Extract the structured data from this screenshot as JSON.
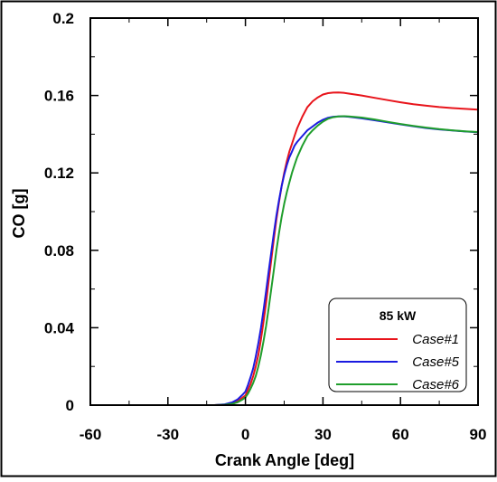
{
  "chart_data": {
    "type": "line",
    "title": "",
    "xlabel": "Crank Angle [deg]",
    "ylabel": "CO [g]",
    "xlim": [
      -60,
      90
    ],
    "ylim": [
      0,
      0.2
    ],
    "xticks": [
      -60,
      -30,
      0,
      30,
      60,
      90
    ],
    "xtick_labels": [
      "-60",
      "-30",
      "0",
      "30",
      "60",
      "90"
    ],
    "yticks": [
      0,
      0.04,
      0.08,
      0.12,
      0.16,
      0.2
    ],
    "ytick_labels": [
      "0",
      "0.04",
      "0.08",
      "0.12",
      "0.16",
      "0.2"
    ],
    "grid": false,
    "legend": {
      "title": "85 kW",
      "placement": "bottom-right"
    },
    "series": [
      {
        "name": "Case#1",
        "color": "#e8141b",
        "x": [
          -60,
          -20,
          -12,
          -8,
          -5,
          -3,
          -1,
          0,
          1,
          2,
          3,
          4,
          5,
          6,
          7,
          8,
          9,
          10,
          11,
          12,
          13,
          14,
          15,
          16,
          17,
          18,
          19,
          20,
          22,
          24,
          26,
          28,
          30,
          32,
          34,
          36,
          38,
          40,
          45,
          50,
          55,
          60,
          65,
          70,
          75,
          80,
          85,
          90
        ],
        "y": [
          0,
          0,
          0,
          0.0003,
          0.001,
          0.002,
          0.004,
          0.005,
          0.008,
          0.011,
          0.015,
          0.02,
          0.026,
          0.034,
          0.043,
          0.053,
          0.064,
          0.075,
          0.086,
          0.096,
          0.105,
          0.113,
          0.12,
          0.126,
          0.131,
          0.135,
          0.139,
          0.143,
          0.149,
          0.154,
          0.157,
          0.159,
          0.1605,
          0.1612,
          0.1615,
          0.1616,
          0.1614,
          0.161,
          0.16,
          0.1588,
          0.1576,
          0.1565,
          0.1555,
          0.1547,
          0.154,
          0.1535,
          0.1531,
          0.1527
        ]
      },
      {
        "name": "Case#5",
        "color": "#1b1be0",
        "x": [
          -60,
          -20,
          -12,
          -8,
          -5,
          -3,
          -1,
          0,
          1,
          2,
          3,
          4,
          5,
          6,
          7,
          8,
          9,
          10,
          11,
          12,
          13,
          14,
          15,
          16,
          17,
          18,
          19,
          20,
          22,
          24,
          26,
          28,
          30,
          32,
          34,
          36,
          38,
          40,
          45,
          50,
          55,
          60,
          65,
          70,
          75,
          80,
          85,
          90
        ],
        "y": [
          0,
          0,
          0,
          0.0004,
          0.0015,
          0.003,
          0.0055,
          0.007,
          0.0105,
          0.0145,
          0.019,
          0.025,
          0.032,
          0.04,
          0.049,
          0.059,
          0.069,
          0.079,
          0.089,
          0.098,
          0.106,
          0.113,
          0.119,
          0.124,
          0.128,
          0.131,
          0.134,
          0.136,
          0.139,
          0.142,
          0.144,
          0.146,
          0.1475,
          0.1485,
          0.149,
          0.1492,
          0.1492,
          0.149,
          0.1482,
          0.1472,
          0.1461,
          0.1451,
          0.1441,
          0.1432,
          0.1425,
          0.1419,
          0.1414,
          0.141
        ]
      },
      {
        "name": "Case#6",
        "color": "#1f9e2c",
        "x": [
          -60,
          -20,
          -12,
          -8,
          -5,
          -3,
          -1,
          0,
          1,
          2,
          3,
          4,
          5,
          6,
          7,
          8,
          9,
          10,
          11,
          12,
          13,
          14,
          15,
          16,
          17,
          18,
          19,
          20,
          22,
          24,
          26,
          28,
          30,
          32,
          34,
          36,
          38,
          40,
          45,
          50,
          55,
          60,
          65,
          70,
          75,
          80,
          85,
          90
        ],
        "y": [
          0,
          0,
          0,
          0.0002,
          0.0007,
          0.0015,
          0.003,
          0.004,
          0.006,
          0.0085,
          0.0115,
          0.015,
          0.02,
          0.026,
          0.033,
          0.041,
          0.05,
          0.06,
          0.07,
          0.08,
          0.089,
          0.097,
          0.104,
          0.11,
          0.115,
          0.12,
          0.124,
          0.128,
          0.134,
          0.139,
          0.142,
          0.1445,
          0.1465,
          0.148,
          0.1488,
          0.1492,
          0.1493,
          0.1492,
          0.1486,
          0.1476,
          0.1464,
          0.1453,
          0.1443,
          0.1434,
          0.1426,
          0.142,
          0.1415,
          0.1411
        ]
      }
    ]
  }
}
